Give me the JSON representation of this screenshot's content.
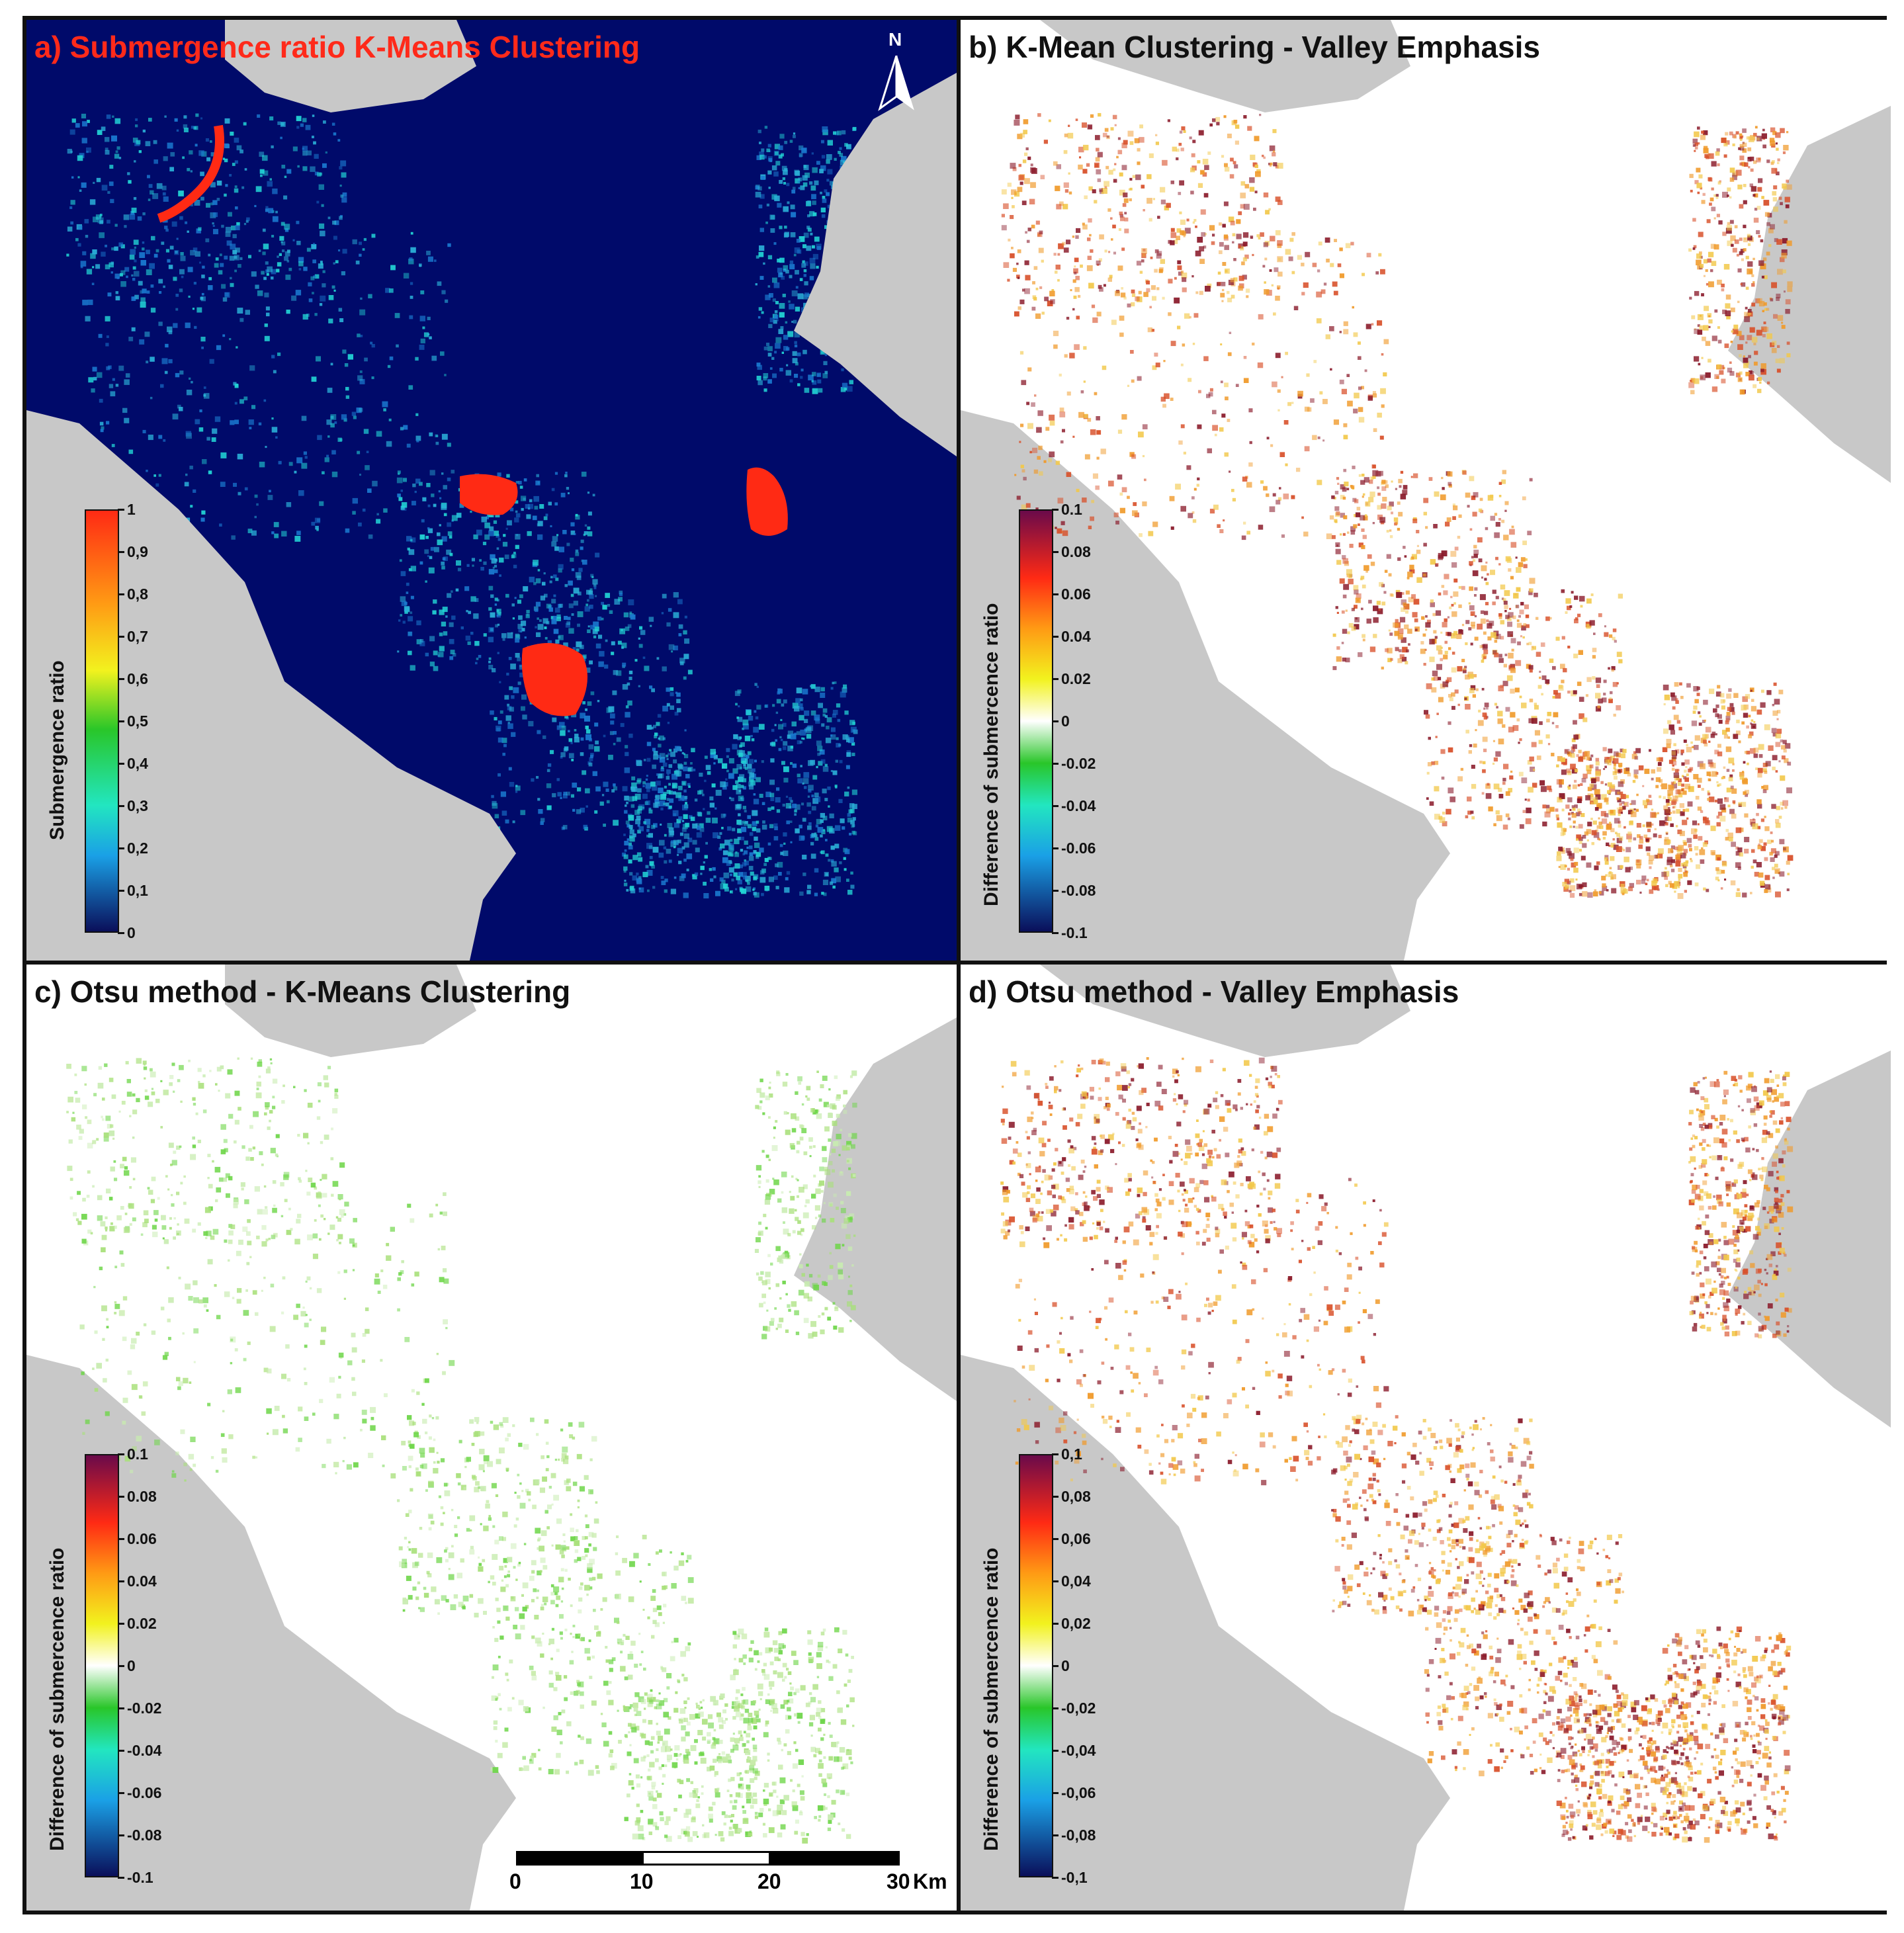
{
  "figure": {
    "panels": [
      {
        "id": "a",
        "title": "a) Submergence ratio K-Means Clustering",
        "title_color": "#ff2a1a",
        "background": "#000a6a"
      },
      {
        "id": "b",
        "title": "b) K-Mean Clustering - Valley Emphasis",
        "title_color": "#111111",
        "background": "#ffffff"
      },
      {
        "id": "c",
        "title": "c) Otsu method - K-Means Clustering",
        "title_color": "#111111",
        "background": "#ffffff"
      },
      {
        "id": "d",
        "title": "d) Otsu method - Valley Emphasis",
        "title_color": "#111111",
        "background": "#ffffff"
      }
    ],
    "legend_a": {
      "title": "Submergence ratio",
      "ticks": [
        "1",
        "0,9",
        "0,8",
        "0,7",
        "0,6",
        "0,5",
        "0,4",
        "0,3",
        "0,2",
        "0,1",
        "0"
      ]
    },
    "legend_b": {
      "title": "Difference of submercence ratio",
      "ticks": [
        "0.1",
        "0.08",
        "0.06",
        "0.04",
        "0.02",
        "0",
        "-0.02",
        "-0.04",
        "-0.06",
        "-0.08",
        "-0.1"
      ]
    },
    "legend_c": {
      "title": "Difference of submercence ratio",
      "ticks": [
        "0.1",
        "0.08",
        "0.06",
        "0.04",
        "0.02",
        "0",
        "-0.02",
        "-0.04",
        "-0.06",
        "-0.08",
        "-0.1"
      ]
    },
    "legend_d": {
      "title": "Difference of submercence ratio",
      "ticks": [
        "0,1",
        "0,08",
        "0,06",
        "0,04",
        "0,02",
        "0",
        "-0,02",
        "-0,04",
        "-0,06",
        "-0,08",
        "-0,1"
      ]
    },
    "north_arrow": {
      "label": "N"
    },
    "scale_bar": {
      "labels": [
        "0",
        "10",
        "20",
        "30"
      ],
      "unit": "Km"
    },
    "colors": {
      "land_mask": "#c8c8c8",
      "water_dark": "#000a6a",
      "flood_red": "#ff2a14",
      "cyan_speckle": "#22d6d6",
      "green_speckle": "#6fd64a",
      "orange_speckle": "#f09a2a",
      "darkred_speckle": "#8a1a2a"
    }
  }
}
